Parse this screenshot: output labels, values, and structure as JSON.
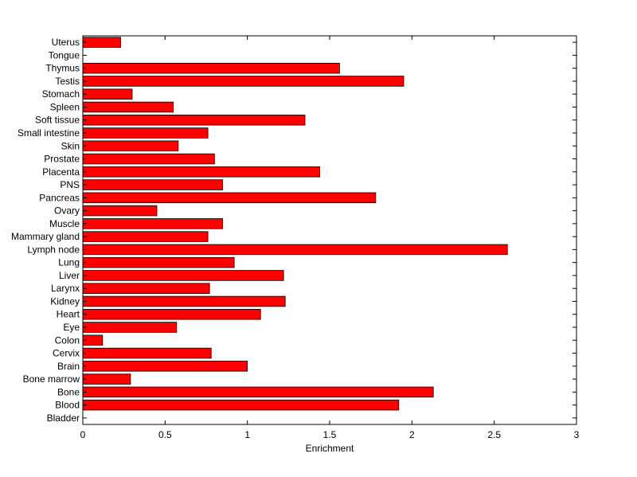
{
  "chart_data": {
    "type": "bar",
    "orientation": "horizontal",
    "xlabel": "Enrichment",
    "ylabel": "",
    "title": "",
    "xlim": [
      0,
      3
    ],
    "xticks": [
      0,
      0.5,
      1,
      1.5,
      2,
      2.5,
      3
    ],
    "grid": false,
    "bar_color": "#ff0000",
    "categories": [
      "Bladder",
      "Blood",
      "Bone",
      "Bone marrow",
      "Brain",
      "Cervix",
      "Colon",
      "Eye",
      "Heart",
      "Kidney",
      "Larynx",
      "Liver",
      "Lung",
      "Lymph node",
      "Mammary gland",
      "Muscle",
      "Ovary",
      "Pancreas",
      "PNS",
      "Placenta",
      "Prostate",
      "Skin",
      "Small intestine",
      "Soft tissue",
      "Spleen",
      "Stomach",
      "Testis",
      "Thymus",
      "Tongue",
      "Uterus"
    ],
    "values": [
      0,
      1.92,
      2.13,
      0.29,
      1.0,
      0.78,
      0.12,
      0.57,
      1.08,
      1.23,
      0.77,
      1.22,
      0.92,
      2.58,
      0.76,
      0.85,
      0.45,
      1.78,
      0.85,
      1.44,
      0.8,
      0.58,
      0.76,
      1.35,
      0.55,
      0.3,
      1.95,
      1.56,
      0,
      0.23
    ]
  }
}
